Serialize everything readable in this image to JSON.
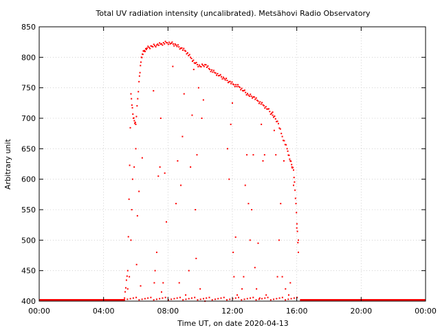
{
  "chart_data": {
    "type": "scatter",
    "title": "Total UV radiation intensity (uncalibrated). Metsähovi Radio Observatory",
    "xlabel": "Time UT, on date 2020-04-13",
    "ylabel": "Arbitrary unit",
    "xlim": [
      0,
      24
    ],
    "ylim": [
      400,
      850
    ],
    "x_ticks": [
      0,
      4,
      8,
      12,
      16,
      20,
      24
    ],
    "x_tick_labels": [
      "00:00",
      "04:00",
      "08:00",
      "12:00",
      "16:00",
      "20:00",
      "00:00"
    ],
    "y_ticks": [
      400,
      450,
      500,
      550,
      600,
      650,
      700,
      750,
      800,
      850
    ],
    "y_tick_labels": [
      "400",
      "450",
      "500",
      "550",
      "600",
      "650",
      "700",
      "750",
      "800",
      "850"
    ],
    "grid": true,
    "series": [
      {
        "color": "#ff0000",
        "marker": "small-dot",
        "envelope": {
          "x": [
            5.3,
            5.5,
            5.7,
            5.85,
            6.0,
            6.2,
            6.35,
            6.5,
            6.7,
            7.0,
            7.3,
            7.6,
            7.9,
            8.2,
            8.5,
            8.8,
            9.1,
            9.4,
            9.7,
            10.0,
            10.3,
            10.6,
            10.9,
            11.2,
            11.5,
            11.8,
            12.1,
            12.4,
            12.7,
            13.0,
            13.3,
            13.6,
            13.9,
            14.2,
            14.5,
            14.8,
            15.1,
            15.4,
            15.6,
            15.8,
            15.95,
            16.1
          ],
          "y": [
            405,
            450,
            740,
            700,
            690,
            760,
            800,
            810,
            815,
            818,
            820,
            822,
            824,
            823,
            820,
            815,
            810,
            800,
            790,
            785,
            788,
            780,
            775,
            770,
            765,
            760,
            755,
            752,
            745,
            738,
            735,
            728,
            722,
            715,
            705,
            695,
            670,
            650,
            630,
            615,
            560,
            480
          ]
        },
        "scatter_points": [
          [
            5.5,
            420
          ],
          [
            5.6,
            440
          ],
          [
            5.7,
            500
          ],
          [
            5.75,
            550
          ],
          [
            5.8,
            600
          ],
          [
            5.9,
            620
          ],
          [
            6.0,
            650
          ],
          [
            6.05,
            460
          ],
          [
            6.1,
            540
          ],
          [
            6.2,
            580
          ],
          [
            6.3,
            425
          ],
          [
            6.4,
            635
          ],
          [
            7.1,
            745
          ],
          [
            7.15,
            430
          ],
          [
            7.2,
            450
          ],
          [
            7.3,
            480
          ],
          [
            7.4,
            605
          ],
          [
            7.5,
            620
          ],
          [
            7.55,
            700
          ],
          [
            7.6,
            415
          ],
          [
            7.7,
            430
          ],
          [
            7.8,
            610
          ],
          [
            7.9,
            530
          ],
          [
            8.3,
            785
          ],
          [
            8.5,
            560
          ],
          [
            8.6,
            630
          ],
          [
            8.7,
            430
          ],
          [
            8.8,
            590
          ],
          [
            8.9,
            670
          ],
          [
            9.0,
            740
          ],
          [
            9.1,
            410
          ],
          [
            9.3,
            450
          ],
          [
            9.4,
            620
          ],
          [
            9.5,
            705
          ],
          [
            9.6,
            780
          ],
          [
            9.7,
            550
          ],
          [
            9.75,
            470
          ],
          [
            9.8,
            640
          ],
          [
            9.9,
            750
          ],
          [
            10.0,
            420
          ],
          [
            10.1,
            700
          ],
          [
            10.2,
            730
          ],
          [
            10.3,
            400
          ],
          [
            11.7,
            650
          ],
          [
            11.8,
            600
          ],
          [
            11.9,
            690
          ],
          [
            12.0,
            725
          ],
          [
            12.05,
            480
          ],
          [
            12.1,
            440
          ],
          [
            12.2,
            505
          ],
          [
            12.3,
            410
          ],
          [
            12.6,
            420
          ],
          [
            12.7,
            440
          ],
          [
            12.8,
            590
          ],
          [
            12.9,
            640
          ],
          [
            13.0,
            560
          ],
          [
            13.1,
            500
          ],
          [
            13.2,
            550
          ],
          [
            13.3,
            640
          ],
          [
            13.4,
            455
          ],
          [
            13.5,
            420
          ],
          [
            13.6,
            495
          ],
          [
            13.7,
            405
          ],
          [
            13.8,
            690
          ],
          [
            13.9,
            630
          ],
          [
            14.0,
            640
          ],
          [
            14.1,
            410
          ],
          [
            14.5,
            710
          ],
          [
            14.6,
            680
          ],
          [
            14.7,
            640
          ],
          [
            14.8,
            440
          ],
          [
            14.9,
            500
          ],
          [
            15.0,
            560
          ],
          [
            15.1,
            440
          ],
          [
            15.2,
            630
          ],
          [
            15.3,
            420
          ],
          [
            15.5,
            410
          ],
          [
            15.6,
            430
          ],
          [
            15.7,
            620
          ],
          [
            15.8,
            590
          ],
          [
            16.0,
            520
          ],
          [
            16.1,
            500
          ]
        ],
        "baseline": {
          "y": 402,
          "x_ranges": [
            [
              0,
              5.3
            ],
            [
              16.2,
              24
            ]
          ]
        }
      }
    ]
  }
}
